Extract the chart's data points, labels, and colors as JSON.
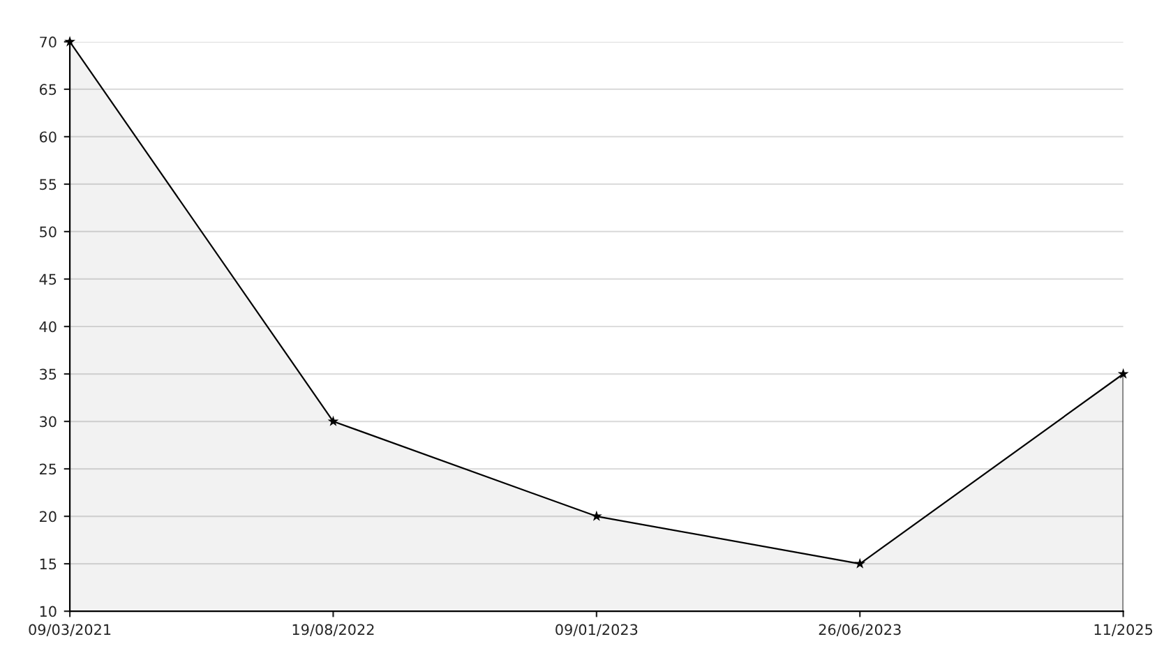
{
  "chart_data": {
    "type": "area",
    "categories": [
      "09/03/2021",
      "19/08/2022",
      "09/01/2023",
      "26/06/2023",
      "11/2025"
    ],
    "series": [
      {
        "color": "#000000",
        "values": [
          70,
          30,
          20,
          15,
          35
        ]
      }
    ],
    "ylim": [
      10,
      70
    ],
    "yticks": [
      10,
      15,
      20,
      25,
      30,
      35,
      40,
      45,
      50,
      55,
      60,
      65,
      70
    ],
    "grid": "y",
    "marker": "star",
    "line_style": "solid",
    "legend": false
  }
}
